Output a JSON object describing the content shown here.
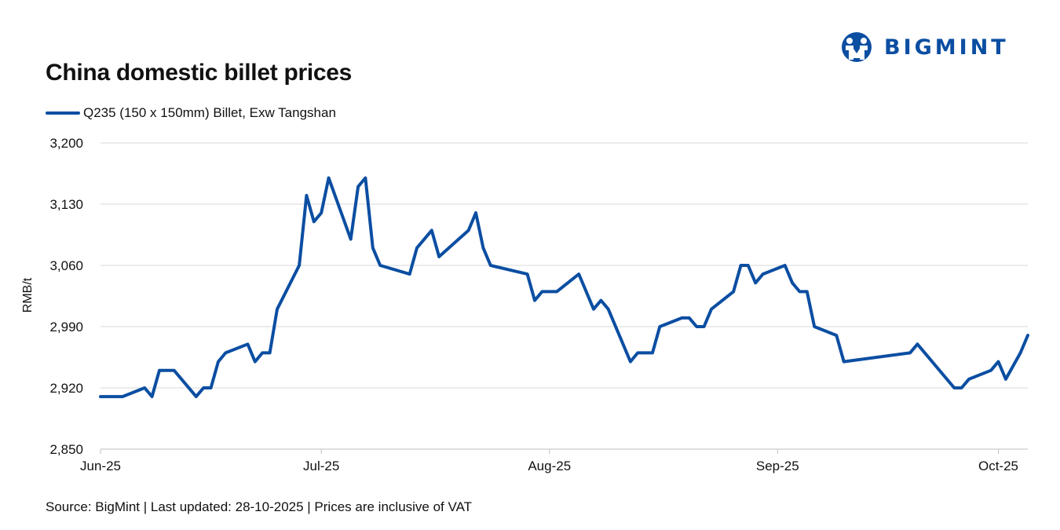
{
  "brand": {
    "name": "BIGMINT",
    "color": "#0b4ea2"
  },
  "chart_data": {
    "type": "line",
    "title": "China domestic billet prices",
    "ylabel": "RMB/t",
    "xlabel": "",
    "ylim": [
      2850,
      3200
    ],
    "yticks": [
      "2,850",
      "2,920",
      "2,990",
      "3,060",
      "3,130",
      "3,200"
    ],
    "yticks_values": [
      2850,
      2920,
      2990,
      3060,
      3130,
      3200
    ],
    "xticks": [
      {
        "label": "Jun-25",
        "date": "2025-06-01"
      },
      {
        "label": "Jul-25",
        "date": "2025-07-01"
      },
      {
        "label": "Aug-25",
        "date": "2025-08-01"
      },
      {
        "label": "Sep-25",
        "date": "2025-09-01"
      },
      {
        "label": "Oct-25",
        "date": "2025-10-01"
      }
    ],
    "xlim": [
      "2025-06-01",
      "2025-10-05"
    ],
    "grid": true,
    "legend_position": "top-left",
    "series": [
      {
        "name": "Q235 (150 x 150mm) Billet, Exw Tangshan",
        "color": "#0b4ea2",
        "points": [
          [
            "2025-06-01",
            2910
          ],
          [
            "2025-06-04",
            2910
          ],
          [
            "2025-06-07",
            2920
          ],
          [
            "2025-06-08",
            2910
          ],
          [
            "2025-06-09",
            2940
          ],
          [
            "2025-06-11",
            2940
          ],
          [
            "2025-06-14",
            2910
          ],
          [
            "2025-06-15",
            2920
          ],
          [
            "2025-06-16",
            2920
          ],
          [
            "2025-06-17",
            2950
          ],
          [
            "2025-06-18",
            2960
          ],
          [
            "2025-06-21",
            2970
          ],
          [
            "2025-06-22",
            2950
          ],
          [
            "2025-06-23",
            2960
          ],
          [
            "2025-06-24",
            2960
          ],
          [
            "2025-06-25",
            3010
          ],
          [
            "2025-06-28",
            3060
          ],
          [
            "2025-06-29",
            3140
          ],
          [
            "2025-06-30",
            3110
          ],
          [
            "2025-07-01",
            3120
          ],
          [
            "2025-07-02",
            3160
          ],
          [
            "2025-07-05",
            3090
          ],
          [
            "2025-07-06",
            3150
          ],
          [
            "2025-07-07",
            3160
          ],
          [
            "2025-07-08",
            3080
          ],
          [
            "2025-07-09",
            3060
          ],
          [
            "2025-07-13",
            3050
          ],
          [
            "2025-07-14",
            3080
          ],
          [
            "2025-07-16",
            3100
          ],
          [
            "2025-07-17",
            3070
          ],
          [
            "2025-07-21",
            3100
          ],
          [
            "2025-07-22",
            3120
          ],
          [
            "2025-07-23",
            3080
          ],
          [
            "2025-07-24",
            3060
          ],
          [
            "2025-07-29",
            3050
          ],
          [
            "2025-07-30",
            3020
          ],
          [
            "2025-07-31",
            3030
          ],
          [
            "2025-08-02",
            3030
          ],
          [
            "2025-08-05",
            3050
          ],
          [
            "2025-08-06",
            3030
          ],
          [
            "2025-08-07",
            3010
          ],
          [
            "2025-08-08",
            3020
          ],
          [
            "2025-08-09",
            3010
          ],
          [
            "2025-08-12",
            2950
          ],
          [
            "2025-08-13",
            2960
          ],
          [
            "2025-08-15",
            2960
          ],
          [
            "2025-08-16",
            2990
          ],
          [
            "2025-08-19",
            3000
          ],
          [
            "2025-08-20",
            3000
          ],
          [
            "2025-08-21",
            2990
          ],
          [
            "2025-08-22",
            2990
          ],
          [
            "2025-08-23",
            3010
          ],
          [
            "2025-08-26",
            3030
          ],
          [
            "2025-08-27",
            3060
          ],
          [
            "2025-08-28",
            3060
          ],
          [
            "2025-08-29",
            3040
          ],
          [
            "2025-08-30",
            3050
          ],
          [
            "2025-09-02",
            3060
          ],
          [
            "2025-09-03",
            3040
          ],
          [
            "2025-09-04",
            3030
          ],
          [
            "2025-09-05",
            3030
          ],
          [
            "2025-09-06",
            2990
          ],
          [
            "2025-09-09",
            2980
          ],
          [
            "2025-09-10",
            2950
          ],
          [
            "2025-09-19",
            2960
          ],
          [
            "2025-09-20",
            2970
          ],
          [
            "2025-09-25",
            2920
          ],
          [
            "2025-09-26",
            2920
          ],
          [
            "2025-09-27",
            2930
          ],
          [
            "2025-09-30",
            2940
          ],
          [
            "2025-10-01",
            2950
          ],
          [
            "2025-10-02",
            2930
          ],
          [
            "2025-10-04",
            2960
          ],
          [
            "2025-10-05",
            2980
          ]
        ]
      }
    ]
  },
  "footer": {
    "source_text": "Source: BigMint | Last updated: 28-10-2025 | Prices are inclusive of VAT"
  }
}
